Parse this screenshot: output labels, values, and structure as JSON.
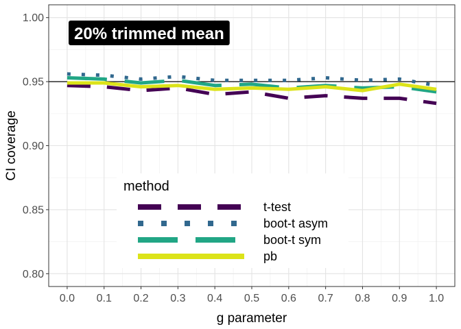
{
  "chart_data": {
    "type": "line",
    "title": "",
    "annotation": "20% trimmed mean",
    "xlabel": "g parameter",
    "ylabel": "CI coverage",
    "x": [
      0,
      0.1,
      0.2,
      0.3,
      0.4,
      0.5,
      0.6,
      0.7,
      0.8,
      0.9,
      1.0
    ],
    "x_tick_labels": [
      "0.0",
      "0.1",
      "0.2",
      "0.3",
      "0.4",
      "0.5",
      "0.6",
      "0.7",
      "0.8",
      "0.9",
      "1.0"
    ],
    "y_tick_labels": [
      "0.80",
      "0.85",
      "0.90",
      "0.95",
      "1.00"
    ],
    "y_ticks": [
      0.8,
      0.85,
      0.9,
      0.95,
      1.0
    ],
    "xlim": [
      -0.05,
      1.05
    ],
    "ylim": [
      0.79,
      1.01
    ],
    "reference_line": 0.95,
    "grid": true,
    "legend_title": "method",
    "legend_position": "bottom-left-inside",
    "series": [
      {
        "name": "t-test",
        "color": "#440154",
        "dash": "long-dash",
        "values": [
          0.947,
          0.946,
          0.943,
          0.945,
          0.94,
          0.942,
          0.937,
          0.939,
          0.937,
          0.937,
          0.933
        ]
      },
      {
        "name": "boot-t asym",
        "color": "#31688E",
        "dash": "dotted",
        "values": [
          0.956,
          0.955,
          0.952,
          0.954,
          0.951,
          0.951,
          0.951,
          0.953,
          0.951,
          0.952,
          0.947
        ]
      },
      {
        "name": "boot-t sym",
        "color": "#21A685",
        "dash": "dashed",
        "values": [
          0.953,
          0.952,
          0.949,
          0.951,
          0.947,
          0.948,
          0.945,
          0.947,
          0.945,
          0.946,
          0.942
        ]
      },
      {
        "name": "pb",
        "color": "#DCE319",
        "dash": "solid",
        "values": [
          0.949,
          0.949,
          0.946,
          0.947,
          0.944,
          0.945,
          0.944,
          0.946,
          0.943,
          0.948,
          0.944
        ]
      }
    ]
  }
}
